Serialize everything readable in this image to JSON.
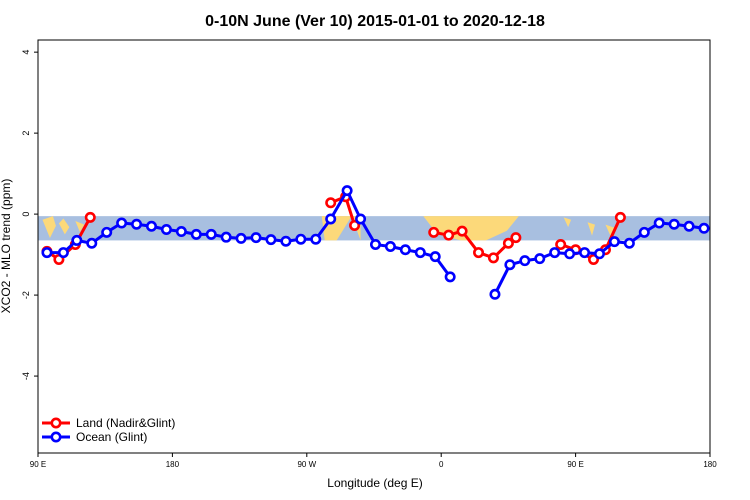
{
  "chart_data": {
    "type": "line",
    "title": "0-10N June (Ver 10)   2015-01-01 to 2020-12-18",
    "xlabel": "Longitude (deg E)",
    "ylabel": "XCO2 - MLO trend (ppm)",
    "x_ticks": [
      {
        "value": 90,
        "label": "90 E"
      },
      {
        "value": 180,
        "label": "180"
      },
      {
        "value": 270,
        "label": "90 W"
      },
      {
        "value": 360,
        "label": "0"
      },
      {
        "value": 450,
        "label": "90 E"
      },
      {
        "value": 540,
        "label": "180"
      }
    ],
    "y_ticks": [
      -4,
      -2,
      0,
      2,
      4
    ],
    "xlim": [
      90,
      540
    ],
    "ylim": [
      -5.9,
      4.3
    ],
    "band": {
      "y_range": [
        -0.65,
        -0.05
      ]
    },
    "legend_position": "bottom-left",
    "colors": {
      "land": "#ff0000",
      "ocean": "#0000ff",
      "ocean_band": "#a8bfe0",
      "land_band": "#fcd97a"
    },
    "series": [
      {
        "name": "Land (Nadir&Glint)",
        "key": "land",
        "segments": [
          [
            [
              96,
              -0.92
            ],
            [
              104,
              -1.12
            ],
            [
              115,
              -0.75
            ],
            [
              125,
              -0.08
            ]
          ],
          [
            [
              286,
              0.28
            ],
            [
              296,
              0.43
            ],
            [
              302,
              -0.28
            ]
          ],
          [
            [
              355,
              -0.45
            ],
            [
              365,
              -0.52
            ],
            [
              374,
              -0.42
            ],
            [
              385,
              -0.95
            ],
            [
              395,
              -1.08
            ],
            [
              405,
              -0.72
            ],
            [
              410,
              -0.58
            ]
          ],
          [
            [
              440,
              -0.75
            ],
            [
              450,
              -0.88
            ],
            [
              462,
              -1.12
            ],
            [
              470,
              -0.88
            ],
            [
              480,
              -0.08
            ]
          ]
        ]
      },
      {
        "name": "Ocean (Glint)",
        "key": "ocean",
        "segments": [
          [
            [
              96,
              -0.95
            ],
            [
              107,
              -0.95
            ],
            [
              116,
              -0.65
            ],
            [
              126,
              -0.72
            ],
            [
              136,
              -0.45
            ],
            [
              146,
              -0.22
            ],
            [
              156,
              -0.25
            ],
            [
              166,
              -0.3
            ],
            [
              176,
              -0.38
            ],
            [
              186,
              -0.43
            ],
            [
              196,
              -0.5
            ],
            [
              206,
              -0.5
            ],
            [
              216,
              -0.57
            ],
            [
              226,
              -0.6
            ],
            [
              236,
              -0.58
            ],
            [
              246,
              -0.63
            ],
            [
              256,
              -0.67
            ],
            [
              266,
              -0.62
            ],
            [
              276,
              -0.62
            ],
            [
              286,
              -0.12
            ],
            [
              297,
              0.58
            ],
            [
              306,
              -0.12
            ],
            [
              316,
              -0.75
            ],
            [
              326,
              -0.8
            ],
            [
              336,
              -0.88
            ],
            [
              346,
              -0.95
            ],
            [
              356,
              -1.05
            ],
            [
              366,
              -1.55
            ]
          ],
          [
            [
              396,
              -1.98
            ],
            [
              406,
              -1.25
            ],
            [
              416,
              -1.15
            ],
            [
              426,
              -1.1
            ],
            [
              436,
              -0.95
            ],
            [
              446,
              -0.98
            ],
            [
              456,
              -0.95
            ],
            [
              466,
              -0.98
            ],
            [
              476,
              -0.68
            ],
            [
              486,
              -0.72
            ],
            [
              496,
              -0.45
            ],
            [
              506,
              -0.22
            ],
            [
              516,
              -0.25
            ],
            [
              526,
              -0.3
            ],
            [
              536,
              -0.35
            ]
          ]
        ]
      }
    ]
  }
}
